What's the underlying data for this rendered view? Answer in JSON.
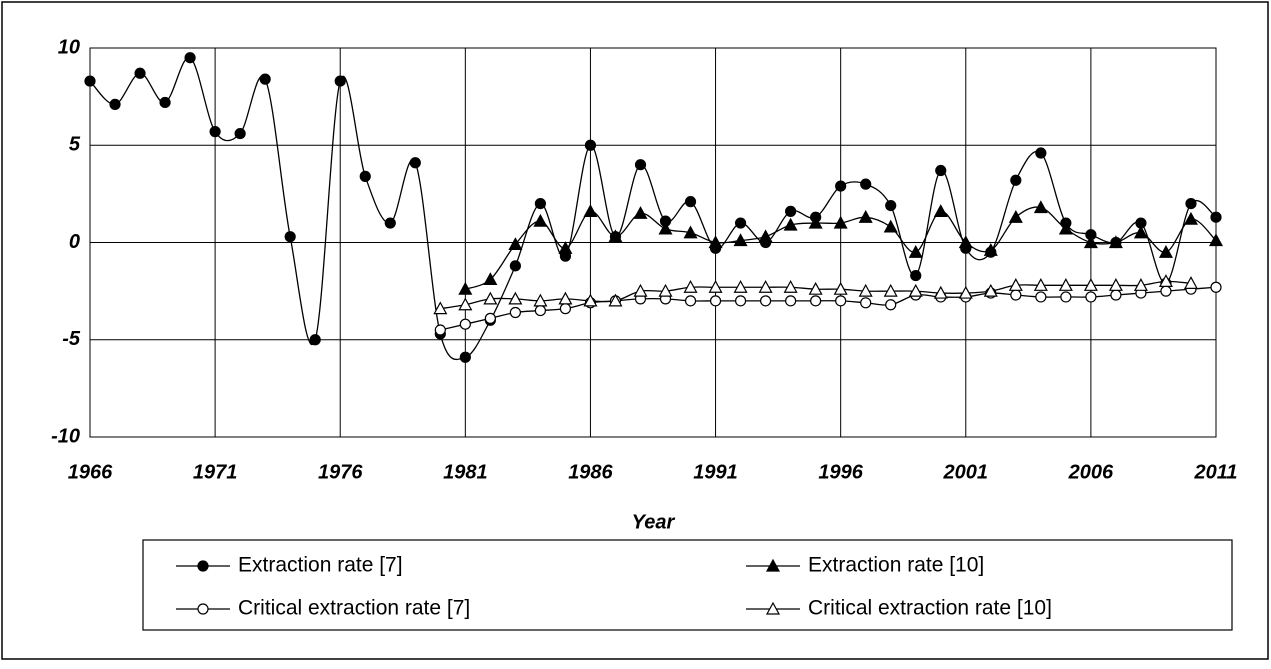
{
  "chart_data": {
    "type": "line",
    "x_label": "Year",
    "x": [
      1966,
      1967,
      1968,
      1969,
      1970,
      1971,
      1972,
      1973,
      1974,
      1975,
      1976,
      1977,
      1978,
      1979,
      1980,
      1981,
      1982,
      1983,
      1984,
      1985,
      1986,
      1987,
      1988,
      1989,
      1990,
      1991,
      1992,
      1993,
      1994,
      1995,
      1996,
      1997,
      1998,
      1999,
      2000,
      2001,
      2002,
      2003,
      2004,
      2005,
      2006,
      2007,
      2008,
      2009,
      2010,
      2011
    ],
    "series": [
      {
        "name": "Extraction rate [7]",
        "color": "#000000",
        "marker": "circle",
        "filled": true,
        "values": [
          8.3,
          7.1,
          8.7,
          7.2,
          9.5,
          5.7,
          5.6,
          8.4,
          0.3,
          -5.0,
          8.3,
          3.4,
          1.0,
          4.1,
          -4.7,
          -5.9,
          -4.0,
          -1.2,
          2.0,
          -0.7,
          5.0,
          0.3,
          4.0,
          1.1,
          2.1,
          -0.3,
          1.0,
          0.0,
          1.6,
          1.3,
          2.9,
          3.0,
          1.9,
          -1.7,
          3.7,
          -0.3,
          -0.5,
          3.2,
          4.6,
          1.0,
          0.4,
          0.0,
          1.0,
          -2.1,
          2.0,
          1.3
        ]
      },
      {
        "name": "Extraction rate [10]",
        "color": "#000000",
        "marker": "triangle",
        "filled": true,
        "values": [
          null,
          null,
          null,
          null,
          null,
          null,
          null,
          null,
          null,
          null,
          null,
          null,
          null,
          null,
          null,
          -2.4,
          -1.9,
          -0.1,
          1.1,
          -0.3,
          1.6,
          0.3,
          1.5,
          0.7,
          0.5,
          0.0,
          0.1,
          0.3,
          0.9,
          1.0,
          1.0,
          1.3,
          0.8,
          -0.5,
          1.6,
          0.0,
          -0.4,
          1.3,
          1.8,
          0.7,
          0.0,
          0.0,
          0.5,
          -0.5,
          1.2,
          0.1
        ]
      },
      {
        "name": "Critical extraction rate [7]",
        "color": "#000000",
        "marker": "circle",
        "filled": false,
        "values": [
          null,
          null,
          null,
          null,
          null,
          null,
          null,
          null,
          null,
          null,
          null,
          null,
          null,
          null,
          -4.5,
          -4.2,
          -3.9,
          -3.6,
          -3.5,
          -3.4,
          -3.1,
          -3.0,
          -2.9,
          -2.9,
          -3.0,
          -3.0,
          -3.0,
          -3.0,
          -3.0,
          -3.0,
          -3.0,
          -3.1,
          -3.2,
          -2.7,
          -2.8,
          -2.8,
          -2.6,
          -2.7,
          -2.8,
          -2.8,
          -2.8,
          -2.7,
          -2.6,
          -2.5,
          -2.4,
          -2.3
        ]
      },
      {
        "name": "Critical extraction rate [10]",
        "color": "#000000",
        "marker": "triangle",
        "filled": false,
        "values": [
          null,
          null,
          null,
          null,
          null,
          null,
          null,
          null,
          null,
          null,
          null,
          null,
          null,
          null,
          -3.4,
          -3.2,
          -2.9,
          -2.9,
          -3.0,
          -2.9,
          -3.0,
          -3.0,
          -2.5,
          -2.5,
          -2.3,
          -2.3,
          -2.3,
          -2.3,
          -2.3,
          -2.4,
          -2.4,
          -2.5,
          -2.5,
          -2.5,
          -2.6,
          -2.6,
          -2.5,
          -2.2,
          -2.2,
          -2.2,
          -2.2,
          -2.2,
          -2.2,
          -2.0,
          -2.1,
          null
        ]
      }
    ],
    "xlim": [
      1966,
      2011
    ],
    "xticks": [
      1966,
      1971,
      1976,
      1981,
      1986,
      1991,
      1996,
      2001,
      2006,
      2011
    ],
    "ylim": [
      -10,
      10
    ],
    "yticks": [
      -10,
      -5,
      0,
      5,
      10
    ],
    "grid": true,
    "legend": "bottom"
  }
}
